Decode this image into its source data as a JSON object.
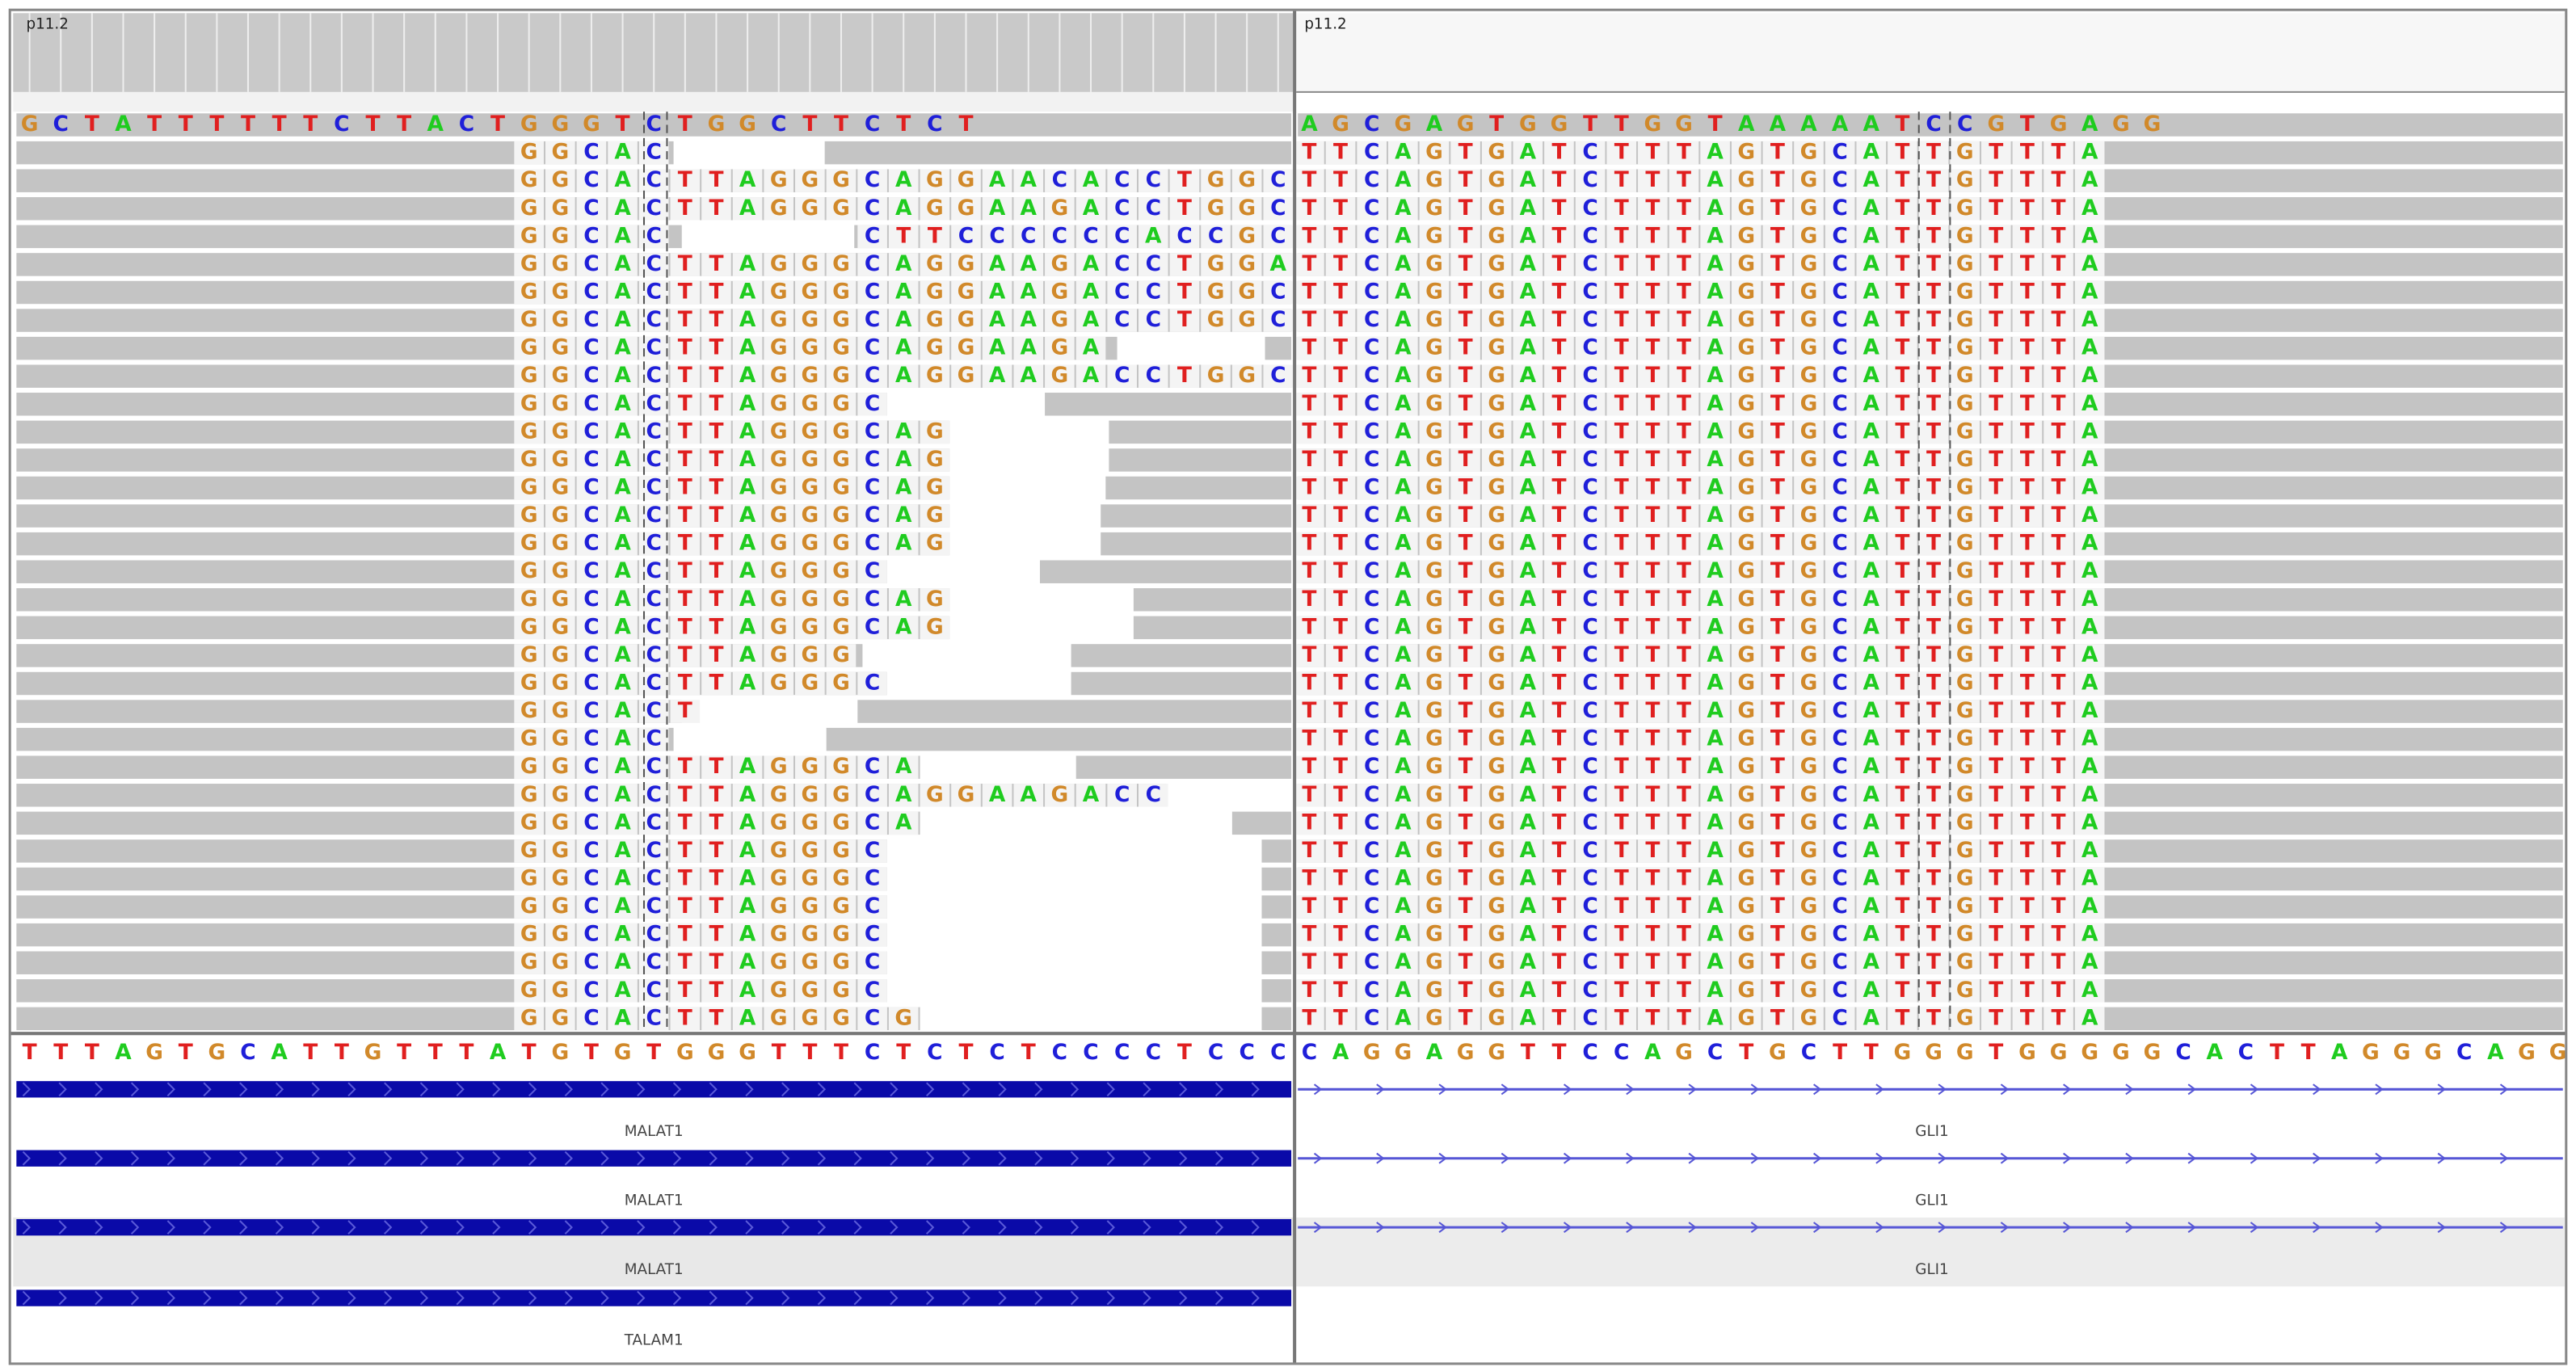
{
  "left_panel": {
    "header": "p11.2",
    "reference_row": "GCTATTTTTTCTTACTGGGTCTGGCTTCTCT",
    "reads": [
      [
        "GGCAC"
      ],
      [
        "GGCACTTAGGGCAGGAACACCTGGC"
      ],
      [
        "GGCACTTAGGGCAGGAAGACCTGGC"
      ],
      [
        "GGCAC",
        "CTTCCCCCCACCGC"
      ],
      [
        "GGCACTTAGGGCAGGAAGACCTGGA"
      ],
      [
        "GGCACTTAGGGCAGGAAGACCTGGC"
      ],
      [
        "GGCACTTAGGGCAGGAAGACCTGGC"
      ],
      [
        "GGCACTTAGGGCAGGAAGA"
      ],
      [
        "GGCACTTAGGGCAGGAAGACCTGGC"
      ],
      [
        "GGCACTTAGGGC"
      ],
      [
        "GGCACTTAGGGCAG"
      ],
      [
        "GGCACTTAGGGCAG"
      ],
      [
        "GGCACTTAGGGCAG"
      ],
      [
        "GGCACTTAGGGCAG"
      ],
      [
        "GGCACTTAGGGCAG"
      ],
      [
        "GGCACTTAGGGC"
      ],
      [
        "GGCACTTAGGGCAG"
      ],
      [
        "GGCACTTAGGGCAG"
      ],
      [
        "GGCACTTAGGG"
      ],
      [
        "GGCACTTAGGGC"
      ],
      [
        "GGCACT"
      ],
      [
        "GGCAC"
      ],
      [
        "GGCACTTAGGGCA"
      ],
      [
        "GGCACTTAGGGCAGGAAGACC"
      ],
      [
        "GGCACTTAGGGCA"
      ],
      [
        "GGCACTTAGGGC"
      ],
      [
        "GGCACTTAGGGC"
      ],
      [
        "GGCACTTAGGGC"
      ],
      [
        "GGCACTTAGGGC"
      ],
      [
        "GGCACTTAGGGC"
      ],
      [
        "GGCACTTAGGGC"
      ],
      [
        "GGCACTTAGGGCG"
      ]
    ]
  },
  "right_panel": {
    "header": "p11.2",
    "reference_row": "AGCGAGTGGTTGGTAAAAATCCGTGAGG",
    "reads": [
      "TTCAGTGATCTTTAGTGCATTGTTTA",
      "TTCAGTGATCTTTAGTGCATTGTTTA",
      "TTCAGTGATCTTTAGTGCATTGTTTA",
      "TTCAGTGATCTTTAGTGCATTGTTTA",
      "TTCAGTGATCTTTAGTGCATTGTTTA",
      "TTCAGTGATCTTTAGTGCATTGTTTA",
      "TTCAGTGATCTTTAGTGCATTGTTTA",
      "TTCAGTGATCTTTAGTGCATTGTTTA",
      "TTCAGTGATCTTTAGTGCATTGTTTA",
      "TTCAGTGATCTTTAGTGCATTGTTTA",
      "TTCAGTGATCTTTAGTGCATTGTTTA",
      "TTCAGTGATCTTTAGTGCATTGTTTA",
      "TTCAGTGATCTTTAGTGCATTGTTTA",
      "TTCAGTGATCTTTAGTGCATTGTTTA",
      "TTCAGTGATCTTTAGTGCATTGTTTA",
      "TTCAGTGATCTTTAGTGCATTGTTTA",
      "TTCAGTGATCTTTAGTGCATTGTTTA",
      "TTCAGTGATCTTTAGTGCATTGTTTA",
      "TTCAGTGATCTTTAGTGCATTGTTTA",
      "TTCAGTGATCTTTAGTGCATTGTTTA",
      "TTCAGTGATCTTTAGTGCATTGTTTA",
      "TTCAGTGATCTTTAGTGCATTGTTTA",
      "TTCAGTGATCTTTAGTGCATTGTTTA",
      "TTCAGTGATCTTTAGTGCATTGTTTA",
      "TTCAGTGATCTTTAGTGCATTGTTTA",
      "TTCAGTGATCTTTAGTGCATTGTTTA",
      "TTCAGTGATCTTTAGTGCATTGTTTA",
      "TTCAGTGATCTTTAGTGCATTGTTTA",
      "TTCAGTGATCTTTAGTGCATTGTTTA",
      "TTCAGTGATCTTTAGTGCATTGTTTA",
      "TTCAGTGATCTTTAGTGCATTGTTTA",
      "TTCAGTGATCTTTAGTGCATTGTTTA"
    ]
  },
  "sequence_track": {
    "left": "TTTAGTGCATTGTTTATGTGTGGGTTTCTCTCTCCCCTCCC",
    "right": "CAGGAGGTTCCAGCTGCTTGGGTGGGGGCACTTAGGGCAGG"
  },
  "genes": {
    "left": [
      "MALAT1",
      "MALAT1",
      "MALAT1",
      "TALAM1"
    ],
    "right": [
      "GLI1",
      "GLI1",
      "GLI1"
    ]
  }
}
